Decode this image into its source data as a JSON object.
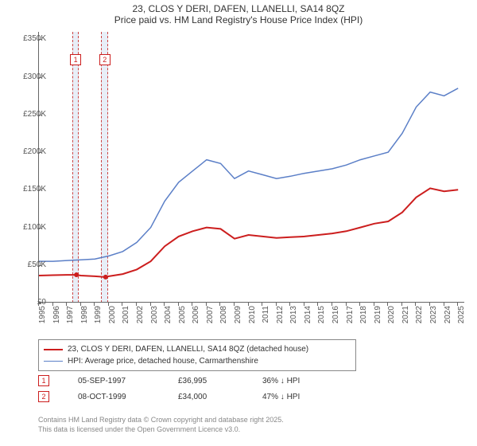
{
  "title": {
    "line1": "23, CLOS Y DERI, DAFEN, LLANELLI, SA14 8QZ",
    "line2": "Price paid vs. HM Land Registry's House Price Index (HPI)"
  },
  "chart": {
    "type": "line",
    "background_color": "#ffffff",
    "x_axis": {
      "min": 1995,
      "max": 2025.5,
      "ticks": [
        1995,
        1996,
        1997,
        1998,
        1999,
        2000,
        2001,
        2002,
        2003,
        2004,
        2005,
        2006,
        2007,
        2008,
        2009,
        2010,
        2011,
        2012,
        2013,
        2014,
        2015,
        2016,
        2017,
        2018,
        2019,
        2020,
        2021,
        2022,
        2023,
        2024,
        2025
      ],
      "label_fontsize": 10
    },
    "y_axis": {
      "min": 0,
      "max": 360000,
      "ticks": [
        0,
        50000,
        100000,
        150000,
        200000,
        250000,
        300000,
        350000
      ],
      "tick_labels": [
        "£0",
        "£50K",
        "£100K",
        "£150K",
        "£200K",
        "£250K",
        "£300K",
        "£350K"
      ],
      "label_fontsize": 10
    },
    "series": [
      {
        "name": "price_paid",
        "label": "23, CLOS Y DERI, DAFEN, LLANELLI, SA14 8QZ (detached house)",
        "color": "#cc1e1e",
        "line_width": 2,
        "points": [
          [
            1995,
            36000
          ],
          [
            1996,
            36500
          ],
          [
            1997,
            37000
          ],
          [
            1997.68,
            36995
          ],
          [
            1998,
            36000
          ],
          [
            1999,
            35000
          ],
          [
            1999.77,
            34000
          ],
          [
            2000,
            35000
          ],
          [
            2001,
            38000
          ],
          [
            2002,
            44000
          ],
          [
            2003,
            55000
          ],
          [
            2004,
            75000
          ],
          [
            2005,
            88000
          ],
          [
            2006,
            95000
          ],
          [
            2007,
            100000
          ],
          [
            2008,
            98000
          ],
          [
            2009,
            85000
          ],
          [
            2010,
            90000
          ],
          [
            2011,
            88000
          ],
          [
            2012,
            86000
          ],
          [
            2013,
            87000
          ],
          [
            2014,
            88000
          ],
          [
            2015,
            90000
          ],
          [
            2016,
            92000
          ],
          [
            2017,
            95000
          ],
          [
            2018,
            100000
          ],
          [
            2019,
            105000
          ],
          [
            2020,
            108000
          ],
          [
            2021,
            120000
          ],
          [
            2022,
            140000
          ],
          [
            2023,
            152000
          ],
          [
            2024,
            148000
          ],
          [
            2025,
            150000
          ]
        ]
      },
      {
        "name": "hpi",
        "label": "HPI: Average price, detached house, Carmarthenshire",
        "color": "#5b7fc7",
        "line_width": 1.5,
        "points": [
          [
            1995,
            55000
          ],
          [
            1996,
            55000
          ],
          [
            1997,
            56000
          ],
          [
            1998,
            57000
          ],
          [
            1999,
            58000
          ],
          [
            2000,
            62000
          ],
          [
            2001,
            68000
          ],
          [
            2002,
            80000
          ],
          [
            2003,
            100000
          ],
          [
            2004,
            135000
          ],
          [
            2005,
            160000
          ],
          [
            2006,
            175000
          ],
          [
            2007,
            190000
          ],
          [
            2008,
            185000
          ],
          [
            2009,
            165000
          ],
          [
            2010,
            175000
          ],
          [
            2011,
            170000
          ],
          [
            2012,
            165000
          ],
          [
            2013,
            168000
          ],
          [
            2014,
            172000
          ],
          [
            2015,
            175000
          ],
          [
            2016,
            178000
          ],
          [
            2017,
            183000
          ],
          [
            2018,
            190000
          ],
          [
            2019,
            195000
          ],
          [
            2020,
            200000
          ],
          [
            2021,
            225000
          ],
          [
            2022,
            260000
          ],
          [
            2023,
            280000
          ],
          [
            2024,
            275000
          ],
          [
            2025,
            285000
          ]
        ]
      }
    ],
    "sale_markers": [
      {
        "n": 1,
        "x": 1997.68,
        "y": 36995,
        "color": "#cc1e1e",
        "band_width_years": 0.5
      },
      {
        "n": 2,
        "x": 1999.77,
        "y": 34000,
        "color": "#cc1e1e",
        "band_width_years": 0.5
      }
    ]
  },
  "legend": {
    "border_color": "#888",
    "fontsize": 10
  },
  "sales": [
    {
      "n": 1,
      "date": "05-SEP-1997",
      "price": "£36,995",
      "delta": "36% ↓ HPI",
      "marker_color": "#cc1e1e"
    },
    {
      "n": 2,
      "date": "08-OCT-1999",
      "price": "£34,000",
      "delta": "47% ↓ HPI",
      "marker_color": "#cc1e1e"
    }
  ],
  "attribution": {
    "line1": "Contains HM Land Registry data © Crown copyright and database right 2025.",
    "line2": "This data is licensed under the Open Government Licence v3.0."
  }
}
